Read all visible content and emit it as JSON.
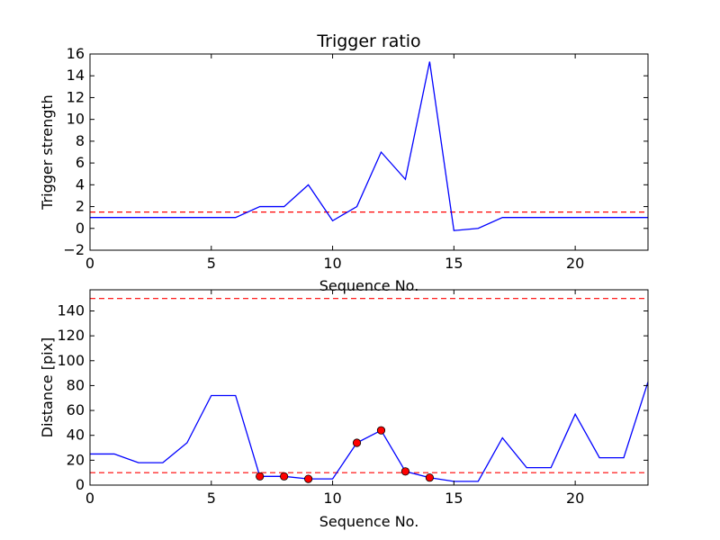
{
  "chart_data": [
    {
      "type": "line",
      "title": "Trigger ratio",
      "xlabel": "Sequence No.",
      "ylabel": "Trigger strength",
      "xlim": [
        0,
        23
      ],
      "ylim": [
        -2,
        16
      ],
      "xticks": [
        0,
        5,
        10,
        15,
        20
      ],
      "yticks": [
        -2,
        0,
        2,
        4,
        6,
        8,
        10,
        12,
        14,
        16
      ],
      "grid": false,
      "series": [
        {
          "color": "#0000ff",
          "x": [
            0,
            1,
            2,
            3,
            4,
            5,
            6,
            7,
            8,
            9,
            10,
            11,
            12,
            13,
            14,
            15,
            16,
            17,
            18,
            19,
            20,
            21,
            22,
            23
          ],
          "y": [
            1,
            1,
            1,
            1,
            1,
            1,
            1,
            2,
            2,
            4,
            0.7,
            2,
            7,
            4.5,
            15.3,
            -0.2,
            0,
            1,
            1,
            1,
            1,
            1,
            1,
            1
          ]
        }
      ],
      "hlines": [
        {
          "y": 1.5,
          "color": "#ff0000",
          "style": "dashed"
        }
      ]
    },
    {
      "type": "line",
      "title": "",
      "xlabel": "Sequence No.",
      "ylabel": "Distance [pix]",
      "xlim": [
        0,
        23
      ],
      "ylim": [
        0,
        157
      ],
      "xticks": [
        0,
        5,
        10,
        15,
        20
      ],
      "yticks": [
        0,
        20,
        40,
        60,
        80,
        100,
        120,
        140
      ],
      "grid": false,
      "series": [
        {
          "color": "#0000ff",
          "x": [
            0,
            1,
            2,
            3,
            4,
            5,
            6,
            7,
            8,
            9,
            10,
            11,
            12,
            13,
            14,
            15,
            16,
            17,
            18,
            19,
            20,
            21,
            22,
            23
          ],
          "y": [
            25,
            25,
            18,
            18,
            34,
            72,
            72,
            7,
            7,
            5,
            5,
            34,
            44,
            11,
            6,
            3,
            3,
            38,
            14,
            14,
            57,
            22,
            22,
            83
          ]
        }
      ],
      "markers": {
        "color": "#ff0000",
        "x": [
          7,
          8,
          9,
          11,
          12,
          13,
          14
        ],
        "y": [
          7,
          7,
          5,
          34,
          44,
          11,
          6
        ]
      },
      "hlines": [
        {
          "y": 10,
          "color": "#ff0000",
          "style": "dashed"
        },
        {
          "y": 150,
          "color": "#ff0000",
          "style": "dashed"
        }
      ]
    }
  ]
}
